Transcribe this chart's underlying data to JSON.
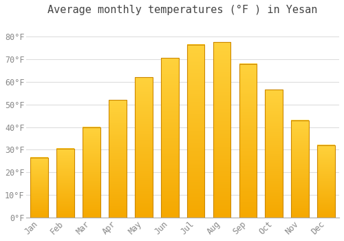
{
  "title": "Average monthly temperatures (°F ) in Yesan",
  "months": [
    "Jan",
    "Feb",
    "Mar",
    "Apr",
    "May",
    "Jun",
    "Jul",
    "Aug",
    "Sep",
    "Oct",
    "Nov",
    "Dec"
  ],
  "values": [
    26.5,
    30.5,
    40.0,
    52.0,
    62.0,
    70.5,
    76.5,
    77.5,
    68.0,
    56.5,
    43.0,
    32.0
  ],
  "bar_color_top": "#FFCC44",
  "bar_color_bottom": "#F5A800",
  "bar_color_edge": "#CC8800",
  "background_color": "#FFFFFF",
  "grid_color": "#DDDDDD",
  "text_color": "#888888",
  "title_color": "#444444",
  "ylim": [
    0,
    87
  ],
  "yticks": [
    0,
    10,
    20,
    30,
    40,
    50,
    60,
    70,
    80
  ],
  "ytick_labels": [
    "0°F",
    "10°F",
    "20°F",
    "30°F",
    "40°F",
    "50°F",
    "60°F",
    "70°F",
    "80°F"
  ],
  "title_fontsize": 11,
  "tick_fontsize": 8.5
}
